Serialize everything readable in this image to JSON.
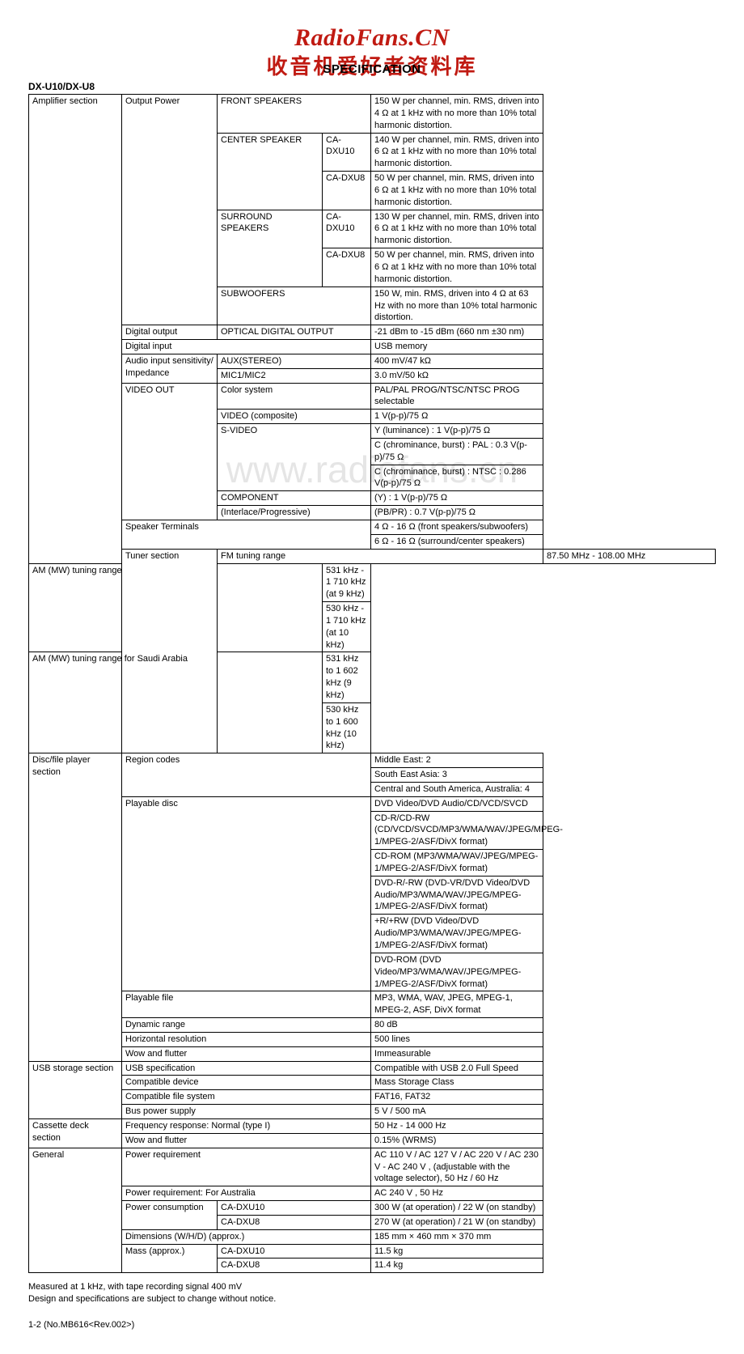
{
  "brand": "RadioFans.CN",
  "brand_sub": "收音机爱好者资料库",
  "spec_title": "SPECIFICATION",
  "model": "DX-U10/DX-U8",
  "watermark": "www.radiofans.cn",
  "sections": {
    "amp": "Amplifier section",
    "tuner": "Tuner section",
    "disc": "Disc/file player section",
    "usb": "USB storage section",
    "cass": "Cassette deck section",
    "gen": "General"
  },
  "amp": {
    "out_power": "Output Power",
    "front": "FRONT SPEAKERS",
    "front_v": "150 W per channel, min. RMS, driven into 4 Ω at 1 kHz with no more than 10% total harmonic distortion.",
    "center": "CENTER SPEAKER",
    "center_m1": "CA-DXU10",
    "center_v1": "140 W per channel, min. RMS, driven into 6 Ω at 1 kHz with no more than 10% total harmonic distortion.",
    "center_m2": "CA-DXU8",
    "center_v2": "50 W per channel, min. RMS, driven into 6 Ω at 1 kHz with no more than 10% total harmonic distortion.",
    "surr": "SURROUND SPEAKERS",
    "surr_m1": "CA-DXU10",
    "surr_v1": "130 W per channel, min. RMS, driven into 6 Ω at 1 kHz with no more than 10% total harmonic distortion.",
    "surr_m2": "CA-DXU8",
    "surr_v2": "50 W per channel, min. RMS, driven into 6 Ω at 1 kHz with no more than 10% total harmonic distortion.",
    "sub": "SUBWOOFERS",
    "sub_v": "150 W, min. RMS, driven into 4 Ω at 63 Hz with no more than 10% total harmonic distortion.",
    "dout": "Digital output",
    "dout_c": "OPTICAL DIGITAL OUTPUT",
    "dout_v": "-21 dBm to -15 dBm (660 nm ±30 nm)",
    "din": "Digital input",
    "din_v": "USB memory",
    "ais": "Audio input sensitivity/ Impedance",
    "aux": "AUX(STEREO)",
    "aux_v": "400 mV/47 kΩ",
    "mic": "MIC1/MIC2",
    "mic_v": "3.0 mV/50 kΩ",
    "vout": "VIDEO OUT",
    "color": "Color system",
    "color_v": "PAL/PAL PROG/NTSC/NTSC PROG selectable",
    "comp": "VIDEO (composite)",
    "comp_v": "1 V(p-p)/75 Ω",
    "svid": "S-VIDEO",
    "svid_v1": "Y (luminance) : 1 V(p-p)/75 Ω",
    "svid_v2": "C (chrominance, burst) : PAL : 0.3 V(p-p)/75 Ω",
    "svid_v3": "C (chrominance, burst) : NTSC : 0.286 V(p-p)/75 Ω",
    "component": "COMPONENT",
    "component_v": "(Y) : 1 V(p-p)/75 Ω",
    "interlace": "(Interlace/Progressive)",
    "interlace_v": "(PB/PR) : 0.7 V(p-p)/75 Ω",
    "spk": "Speaker Terminals",
    "spk_v1": "4 Ω - 16 Ω (front speakers/subwoofers)",
    "spk_v2": "6 Ω - 16 Ω (surround/center speakers)"
  },
  "tuner": {
    "fm": "FM tuning range",
    "fm_v": "87.50 MHz - 108.00 MHz",
    "am": "AM (MW) tuning range",
    "am_v1": "531 kHz - 1 710 kHz (at 9 kHz)",
    "am_v2": "530 kHz - 1 710 kHz (at 10 kHz)",
    "sa": "AM (MW) tuning range for Saudi Arabia",
    "sa_v1": "531 kHz to 1 602 kHz (9 kHz)",
    "sa_v2": "530 kHz to 1 600 kHz (10 kHz)"
  },
  "disc": {
    "region": "Region codes",
    "region_v1": "Middle East: 2",
    "region_v2": "South East Asia: 3",
    "region_v3": "Central and South America, Australia: 4",
    "pdisc": "Playable disc",
    "pd1": "DVD Video/DVD Audio/CD/VCD/SVCD",
    "pd2": "CD-R/CD-RW (CD/VCD/SVCD/MP3/WMA/WAV/JPEG/MPEG-1/MPEG-2/ASF/DivX format)",
    "pd3": "CD-ROM (MP3/WMA/WAV/JPEG/MPEG-1/MPEG-2/ASF/DivX format)",
    "pd4": "DVD-R/-RW (DVD-VR/DVD Video/DVD Audio/MP3/WMA/WAV/JPEG/MPEG-1/MPEG-2/ASF/DivX format)",
    "pd5": "+R/+RW (DVD Video/DVD Audio/MP3/WMA/WAV/JPEG/MPEG-1/MPEG-2/ASF/DivX format)",
    "pd6": "DVD-ROM (DVD Video/MP3/WMA/WAV/JPEG/MPEG-1/MPEG-2/ASF/DivX format)",
    "pfile": "Playable file",
    "pfile_v": "MP3, WMA, WAV, JPEG, MPEG-1, MPEG-2, ASF, DivX format",
    "dyn": "Dynamic range",
    "dyn_v": "80 dB",
    "hres": "Horizontal resolution",
    "hres_v": "500 lines",
    "wow": "Wow and flutter",
    "wow_v": "Immeasurable"
  },
  "usb": {
    "spec": "USB specification",
    "spec_v": "Compatible with USB 2.0 Full Speed",
    "dev": "Compatible device",
    "dev_v": "Mass Storage Class",
    "fs": "Compatible file system",
    "fs_v": "FAT16, FAT32",
    "bus": "Bus power supply",
    "bus_v": "5 V / 500 mA"
  },
  "cass": {
    "freq": "Frequency response: Normal (type I)",
    "freq_v": "50 Hz - 14 000 Hz",
    "wow": "Wow and flutter",
    "wow_v": "0.15% (WRMS)"
  },
  "gen": {
    "pwr": "Power requirement",
    "pwr_v": "AC 110 V / AC 127 V / AC 220 V / AC 230 V - AC 240 V , (adjustable with the voltage selector), 50 Hz / 60 Hz",
    "pwr_au": "Power requirement: For Australia",
    "pwr_au_v": "AC 240 V , 50 Hz",
    "cons": "Power consumption",
    "cons_m1": "CA-DXU10",
    "cons_v1": "300 W (at operation) / 22 W (on standby)",
    "cons_m2": "CA-DXU8",
    "cons_v2": "270 W (at operation) / 21 W (on standby)",
    "dim": "Dimensions (W/H/D) (approx.)",
    "dim_v": "185 mm × 460 mm × 370 mm",
    "mass": "Mass (approx.)",
    "mass_m1": "CA-DXU10",
    "mass_v1": "11.5 kg",
    "mass_m2": "CA-DXU8",
    "mass_v2": "11.4 kg"
  },
  "footer1": "Measured at 1 kHz, with tape recording signal 400 mV",
  "footer2": "Design and specifications are subject to change without notice.",
  "page_ref": "1-2 (No.MB616<Rev.002>)"
}
